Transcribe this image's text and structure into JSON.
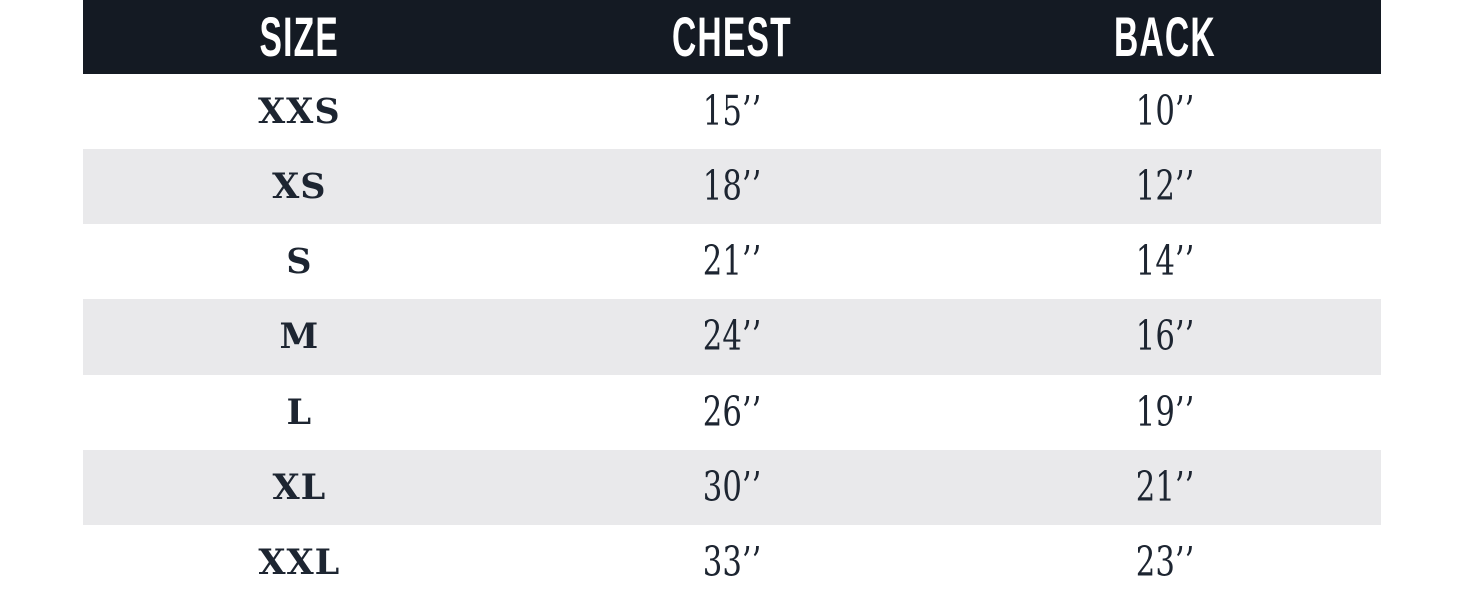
{
  "colors": {
    "page_bg": "#FFFFFF",
    "header_bg": "#141A23",
    "header_text": "#FFFFFF",
    "row_bg": "#FFFFFF",
    "row_alt_bg": "#E9E9EB",
    "body_text": "#1D2531"
  },
  "chart_data": {
    "type": "table",
    "columns": [
      "SIZE",
      "CHEST",
      "BACK"
    ],
    "rows": [
      {
        "size": "XXS",
        "chest": "15’’",
        "back": "10’’"
      },
      {
        "size": "XS",
        "chest": "18’’",
        "back": "12’’"
      },
      {
        "size": "S",
        "chest": "21’’",
        "back": "14’’"
      },
      {
        "size": "M",
        "chest": "24’’",
        "back": "16’’"
      },
      {
        "size": "L",
        "chest": "26’’",
        "back": "19’’"
      },
      {
        "size": "XL",
        "chest": "30’’",
        "back": "21’’"
      },
      {
        "size": "XXL",
        "chest": "33’’",
        "back": "23’’"
      }
    ]
  }
}
